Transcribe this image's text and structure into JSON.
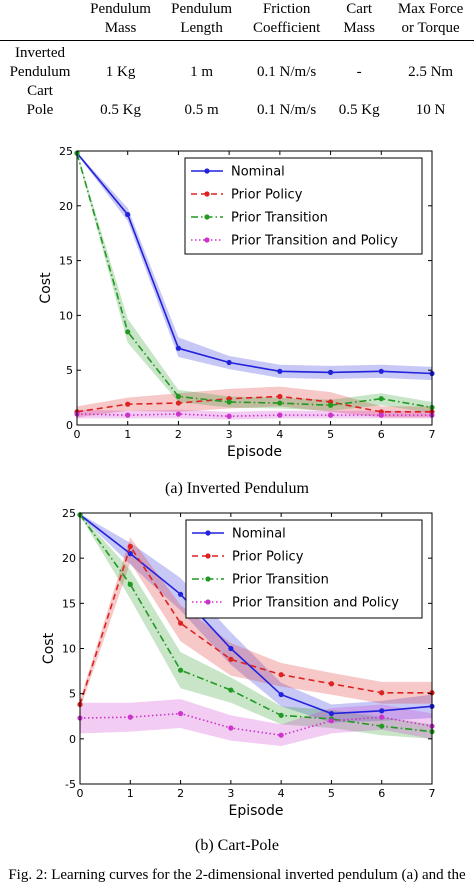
{
  "table": {
    "headers": [
      [
        "",
        ""
      ],
      [
        "Pendulum",
        "Mass"
      ],
      [
        "Pendulum",
        "Length"
      ],
      [
        "Friction",
        "Coefficient"
      ],
      [
        "Cart",
        "Mass"
      ],
      [
        "Max Force",
        "or Torque"
      ]
    ],
    "rows": [
      {
        "label": [
          "Inverted",
          "Pendulum"
        ],
        "cells": [
          "1 Kg",
          "1 m",
          "0.1 N/m/s",
          "-",
          "2.5 Nm"
        ]
      },
      {
        "label": [
          "Cart",
          "Pole"
        ],
        "cells": [
          "0.5 Kg",
          "0.5 m",
          "0.1 N/m/s",
          "0.5 Kg",
          "10 N"
        ]
      }
    ]
  },
  "colors": {
    "nominal": "#2222dd",
    "prior_policy": "#dd2222",
    "prior_transition": "#229922",
    "prior_both": "#cc33cc"
  },
  "chart_data": [
    {
      "type": "line",
      "caption": "(a) Inverted Pendulum",
      "xlabel": "Episode",
      "ylabel": "Cost",
      "xlim": [
        0,
        7
      ],
      "ylim": [
        0,
        25
      ],
      "xticks": [
        0,
        1,
        2,
        3,
        4,
        5,
        6,
        7
      ],
      "yticks": [
        0,
        5,
        10,
        15,
        20,
        25
      ],
      "x": [
        0,
        1,
        2,
        3,
        4,
        5,
        6,
        7
      ],
      "legend_position": "top-right",
      "series": [
        {
          "name": "Nominal",
          "style": "solid",
          "color_key": "nominal",
          "values": [
            24.8,
            19.2,
            7.0,
            5.7,
            4.9,
            4.8,
            4.9,
            4.7
          ],
          "band": [
            [
              24.7,
              24.9
            ],
            [
              18.6,
              19.8
            ],
            [
              6.2,
              8.0
            ],
            [
              5.1,
              6.3
            ],
            [
              4.3,
              5.5
            ],
            [
              4.2,
              5.4
            ],
            [
              4.3,
              5.5
            ],
            [
              4.1,
              5.3
            ]
          ]
        },
        {
          "name": "Prior Policy",
          "style": "dashed",
          "color_key": "prior_policy",
          "values": [
            1.2,
            1.9,
            2.0,
            2.4,
            2.6,
            2.1,
            1.2,
            1.2
          ],
          "band": [
            [
              0.7,
              1.7
            ],
            [
              1.3,
              2.5
            ],
            [
              1.2,
              2.9
            ],
            [
              1.5,
              3.3
            ],
            [
              1.7,
              3.5
            ],
            [
              1.2,
              3.0
            ],
            [
              0.7,
              1.7
            ],
            [
              0.7,
              1.7
            ]
          ]
        },
        {
          "name": "Prior Transition",
          "style": "dashdot",
          "color_key": "prior_transition",
          "values": [
            24.8,
            8.5,
            2.6,
            2.1,
            2.0,
            1.8,
            2.4,
            1.6
          ],
          "band": [
            [
              24.7,
              24.9
            ],
            [
              7.5,
              9.7
            ],
            [
              2.1,
              3.2
            ],
            [
              1.6,
              2.6
            ],
            [
              1.5,
              2.5
            ],
            [
              1.3,
              2.3
            ],
            [
              1.8,
              2.9
            ],
            [
              1.1,
              2.1
            ]
          ]
        },
        {
          "name": "Prior Transition and Policy",
          "style": "dotted",
          "color_key": "prior_both",
          "values": [
            1.0,
            0.9,
            1.0,
            0.8,
            0.9,
            0.9,
            0.9,
            0.9
          ],
          "band": [
            [
              0.6,
              1.4
            ],
            [
              0.6,
              1.3
            ],
            [
              0.6,
              1.4
            ],
            [
              0.5,
              1.2
            ],
            [
              0.6,
              1.3
            ],
            [
              0.6,
              1.3
            ],
            [
              0.6,
              1.3
            ],
            [
              0.6,
              1.3
            ]
          ]
        }
      ]
    },
    {
      "type": "line",
      "caption": "(b) Cart-Pole",
      "xlabel": "Episode",
      "ylabel": "Cost",
      "xlim": [
        0,
        7
      ],
      "ylim": [
        -5,
        25
      ],
      "xticks": [
        0,
        1,
        2,
        3,
        4,
        5,
        6,
        7
      ],
      "yticks": [
        -5,
        0,
        5,
        10,
        15,
        20,
        25
      ],
      "x": [
        0,
        1,
        2,
        3,
        4,
        5,
        6,
        7
      ],
      "legend_position": "top-right",
      "series": [
        {
          "name": "Nominal",
          "style": "solid",
          "color_key": "nominal",
          "values": [
            24.8,
            20.5,
            16.0,
            10.0,
            4.9,
            2.8,
            3.1,
            3.6
          ],
          "band": [
            [
              24.7,
              24.9
            ],
            [
              19.3,
              21.7
            ],
            [
              14.2,
              17.8
            ],
            [
              8.2,
              11.8
            ],
            [
              3.6,
              6.2
            ],
            [
              1.8,
              3.8
            ],
            [
              2.0,
              4.2
            ],
            [
              2.3,
              4.9
            ]
          ]
        },
        {
          "name": "Prior Policy",
          "style": "dashed",
          "color_key": "prior_policy",
          "values": [
            3.8,
            21.3,
            12.8,
            8.8,
            7.1,
            6.1,
            5.1,
            5.1
          ],
          "band": [
            [
              3.3,
              4.3
            ],
            [
              19.5,
              22.3
            ],
            [
              10.8,
              14.8
            ],
            [
              7.0,
              10.6
            ],
            [
              5.8,
              8.4
            ],
            [
              4.9,
              7.3
            ],
            [
              3.9,
              6.3
            ],
            [
              3.9,
              6.3
            ]
          ]
        },
        {
          "name": "Prior Transition",
          "style": "dashdot",
          "color_key": "prior_transition",
          "values": [
            24.8,
            17.1,
            7.6,
            5.4,
            2.6,
            2.2,
            1.4,
            0.8
          ],
          "band": [
            [
              24.7,
              24.9
            ],
            [
              15.5,
              18.7
            ],
            [
              5.6,
              9.6
            ],
            [
              4.0,
              6.8
            ],
            [
              1.6,
              3.6
            ],
            [
              1.2,
              3.2
            ],
            [
              0.4,
              2.4
            ],
            [
              0.0,
              1.6
            ]
          ]
        },
        {
          "name": "Prior Transition and Policy",
          "style": "dotted",
          "color_key": "prior_both",
          "values": [
            2.3,
            2.4,
            2.8,
            1.2,
            0.4,
            2.0,
            2.4,
            1.4
          ],
          "band": [
            [
              0.6,
              4.0
            ],
            [
              0.8,
              4.0
            ],
            [
              1.2,
              4.4
            ],
            [
              -0.2,
              2.6
            ],
            [
              -0.8,
              1.6
            ],
            [
              0.6,
              3.4
            ],
            [
              1.0,
              3.8
            ],
            [
              0.0,
              2.8
            ]
          ]
        }
      ]
    }
  ],
  "figure_caption": "Fig. 2: Learning curves for the 2-dimensional inverted pendulum (a) and the"
}
